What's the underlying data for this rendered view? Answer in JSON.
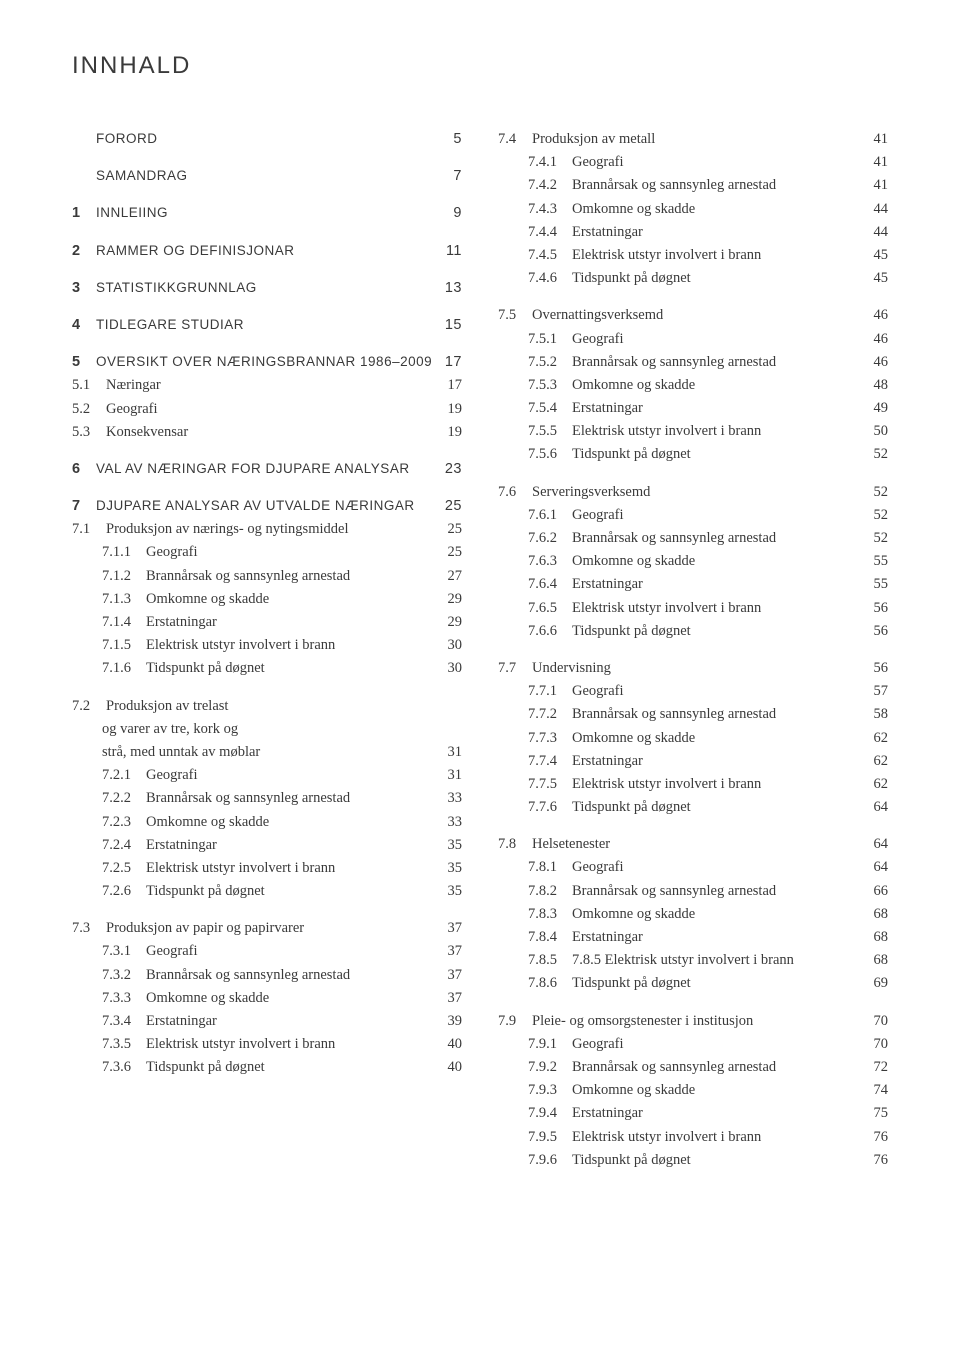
{
  "title": "INNHALD",
  "left": [
    {
      "level": 0,
      "num": "",
      "text": "FORORD",
      "page": "5",
      "gapAfter": true
    },
    {
      "level": 0,
      "num": "",
      "text": "SAMANDRAG",
      "page": "7",
      "gapAfter": true
    },
    {
      "level": 0,
      "num": "1",
      "text": "INNLEIING",
      "page": "9",
      "gapAfter": true
    },
    {
      "level": 0,
      "num": "2",
      "text": "RAMMER OG DEFINISJONAR",
      "page": "11",
      "gapAfter": true
    },
    {
      "level": 0,
      "num": "3",
      "text": "STATISTIKKGRUNNLAG",
      "page": "13",
      "gapAfter": true
    },
    {
      "level": 0,
      "num": "4",
      "text": "TIDLEGARE STUDIAR",
      "page": "15",
      "gapAfter": true
    },
    {
      "level": 0,
      "num": "5",
      "text": "OVERSIKT OVER NÆRINGSBRANNAR 1986–2009",
      "page": "17",
      "noLeader": true
    },
    {
      "level": 1,
      "num": "5.1",
      "text": "Næringar",
      "page": "17"
    },
    {
      "level": 1,
      "num": "5.2",
      "text": "Geografi",
      "page": "19"
    },
    {
      "level": 1,
      "num": "5.3",
      "text": "Konsekvensar",
      "page": "19",
      "gapAfter": true
    },
    {
      "level": 0,
      "num": "6",
      "text": "VAL AV NÆRINGAR FOR DJUPARE ANALYSAR",
      "page": "23",
      "gapAfter": true
    },
    {
      "level": 0,
      "num": "7",
      "text": "DJUPARE ANALYSAR AV UTVALDE NÆRINGAR",
      "page": "25"
    },
    {
      "level": 1,
      "num": "7.1",
      "text": "Produksjon av nærings- og nytingsmiddel",
      "page": "25"
    },
    {
      "level": 2,
      "num": "7.1.1",
      "text": "Geografi",
      "page": "25"
    },
    {
      "level": 2,
      "num": "7.1.2",
      "text": "Brannårsak og sannsynleg arnestad",
      "page": "27"
    },
    {
      "level": 2,
      "num": "7.1.3",
      "text": "Omkomne og skadde",
      "page": "29"
    },
    {
      "level": 2,
      "num": "7.1.4",
      "text": "Erstatningar",
      "page": "29"
    },
    {
      "level": 2,
      "num": "7.1.5",
      "text": "Elektrisk utstyr involvert i brann",
      "page": "30"
    },
    {
      "level": 2,
      "num": "7.1.6",
      "text": "Tidspunkt på døgnet",
      "page": "30",
      "gapAfter": true
    },
    {
      "level": 1,
      "num": "7.2",
      "text": "Produksjon av trelast",
      "multiline": [
        "og varer av tre, kork og",
        "strå, med unntak av møblar"
      ],
      "page": "31"
    },
    {
      "level": 2,
      "num": "7.2.1",
      "text": "Geografi",
      "page": "31"
    },
    {
      "level": 2,
      "num": "7.2.2",
      "text": "Brannårsak og sannsynleg arnestad",
      "page": "33"
    },
    {
      "level": 2,
      "num": "7.2.3",
      "text": "Omkomne og skadde",
      "page": "33"
    },
    {
      "level": 2,
      "num": "7.2.4",
      "text": "Erstatningar",
      "page": "35"
    },
    {
      "level": 2,
      "num": "7.2.5",
      "text": "Elektrisk utstyr involvert i brann",
      "page": "35"
    },
    {
      "level": 2,
      "num": "7.2.6",
      "text": "Tidspunkt på døgnet",
      "page": "35",
      "gapAfter": true
    },
    {
      "level": 1,
      "num": "7.3",
      "text": "Produksjon av papir og papirvarer",
      "page": "37"
    },
    {
      "level": 2,
      "num": "7.3.1",
      "text": "Geografi",
      "page": "37"
    },
    {
      "level": 2,
      "num": "7.3.2",
      "text": "Brannårsak og sannsynleg arnestad",
      "page": "37"
    },
    {
      "level": 2,
      "num": "7.3.3",
      "text": "Omkomne og skadde",
      "page": "37"
    },
    {
      "level": 2,
      "num": "7.3.4",
      "text": "Erstatningar",
      "page": "39"
    },
    {
      "level": 2,
      "num": "7.3.5",
      "text": "Elektrisk utstyr involvert i brann",
      "page": "40"
    },
    {
      "level": 2,
      "num": "7.3.6",
      "text": "Tidspunkt på døgnet",
      "page": "40"
    }
  ],
  "right": [
    {
      "level": 1,
      "num": "7.4",
      "text": "Produksjon av metall",
      "page": "41"
    },
    {
      "level": 2,
      "num": "7.4.1",
      "text": "Geografi",
      "page": "41"
    },
    {
      "level": 2,
      "num": "7.4.2",
      "text": "Brannårsak og sannsynleg arnestad",
      "page": "41"
    },
    {
      "level": 2,
      "num": "7.4.3",
      "text": "Omkomne og skadde",
      "page": "44"
    },
    {
      "level": 2,
      "num": "7.4.4",
      "text": "Erstatningar",
      "page": "44"
    },
    {
      "level": 2,
      "num": "7.4.5",
      "text": "Elektrisk utstyr involvert i brann",
      "page": "45"
    },
    {
      "level": 2,
      "num": "7.4.6",
      "text": "Tidspunkt på døgnet",
      "page": "45",
      "gapAfter": true
    },
    {
      "level": 1,
      "num": "7.5",
      "text": "Overnattingsverksemd",
      "page": "46"
    },
    {
      "level": 2,
      "num": "7.5.1",
      "text": "Geografi",
      "page": "46"
    },
    {
      "level": 2,
      "num": "7.5.2",
      "text": "Brannårsak og sannsynleg arnestad",
      "page": "46"
    },
    {
      "level": 2,
      "num": "7.5.3",
      "text": "Omkomne og skadde",
      "page": "48"
    },
    {
      "level": 2,
      "num": "7.5.4",
      "text": "Erstatningar",
      "page": "49"
    },
    {
      "level": 2,
      "num": "7.5.5",
      "text": "Elektrisk utstyr involvert i brann",
      "page": "50"
    },
    {
      "level": 2,
      "num": "7.5.6",
      "text": "Tidspunkt på døgnet",
      "page": "52",
      "gapAfter": true
    },
    {
      "level": 1,
      "num": "7.6",
      "text": "Serveringsverksemd",
      "page": "52"
    },
    {
      "level": 2,
      "num": "7.6.1",
      "text": "Geografi",
      "page": "52"
    },
    {
      "level": 2,
      "num": "7.6.2",
      "text": "Brannårsak og sannsynleg arnestad",
      "page": "52"
    },
    {
      "level": 2,
      "num": "7.6.3",
      "text": "Omkomne og skadde",
      "page": "55"
    },
    {
      "level": 2,
      "num": "7.6.4",
      "text": "Erstatningar",
      "page": "55"
    },
    {
      "level": 2,
      "num": "7.6.5",
      "text": "Elektrisk utstyr involvert i brann",
      "page": "56"
    },
    {
      "level": 2,
      "num": "7.6.6",
      "text": "Tidspunkt på døgnet",
      "page": "56",
      "gapAfter": true
    },
    {
      "level": 1,
      "num": "7.7",
      "text": "Undervisning",
      "page": "56"
    },
    {
      "level": 2,
      "num": "7.7.1",
      "text": "Geografi",
      "page": "57"
    },
    {
      "level": 2,
      "num": "7.7.2",
      "text": "Brannårsak og sannsynleg arnestad",
      "page": "58"
    },
    {
      "level": 2,
      "num": "7.7.3",
      "text": "Omkomne og skadde",
      "page": "62"
    },
    {
      "level": 2,
      "num": "7.7.4",
      "text": "Erstatningar",
      "page": "62"
    },
    {
      "level": 2,
      "num": "7.7.5",
      "text": "Elektrisk utstyr involvert i brann",
      "page": "62"
    },
    {
      "level": 2,
      "num": "7.7.6",
      "text": "Tidspunkt på døgnet",
      "page": "64",
      "gapAfter": true
    },
    {
      "level": 1,
      "num": "7.8",
      "text": "Helsetenester",
      "page": "64"
    },
    {
      "level": 2,
      "num": "7.8.1",
      "text": "Geografi",
      "page": "64"
    },
    {
      "level": 2,
      "num": "7.8.2",
      "text": "Brannårsak og sannsynleg arnestad",
      "page": "66"
    },
    {
      "level": 2,
      "num": "7.8.3",
      "text": "Omkomne og skadde",
      "page": "68"
    },
    {
      "level": 2,
      "num": "7.8.4",
      "text": "Erstatningar",
      "page": "68"
    },
    {
      "level": 2,
      "num": "7.8.5",
      "text": "7.8.5 Elektrisk utstyr involvert i brann",
      "page": "68",
      "noLeader": true
    },
    {
      "level": 2,
      "num": "7.8.6",
      "text": "Tidspunkt på døgnet",
      "page": "69",
      "gapAfter": true
    },
    {
      "level": 1,
      "num": "7.9",
      "text": "Pleie- og omsorgstenester i institusjon",
      "page": "70"
    },
    {
      "level": 2,
      "num": "7.9.1",
      "text": "Geografi",
      "page": "70"
    },
    {
      "level": 2,
      "num": "7.9.2",
      "text": "Brannårsak og sannsynleg arnestad",
      "page": "72"
    },
    {
      "level": 2,
      "num": "7.9.3",
      "text": "Omkomne og skadde",
      "page": "74"
    },
    {
      "level": 2,
      "num": "7.9.4",
      "text": "Erstatningar",
      "page": "75"
    },
    {
      "level": 2,
      "num": "7.9.5",
      "text": "Elektrisk utstyr involvert i brann",
      "page": "76"
    },
    {
      "level": 2,
      "num": "7.9.6",
      "text": "Tidspunkt på døgnet",
      "page": "76"
    }
  ]
}
